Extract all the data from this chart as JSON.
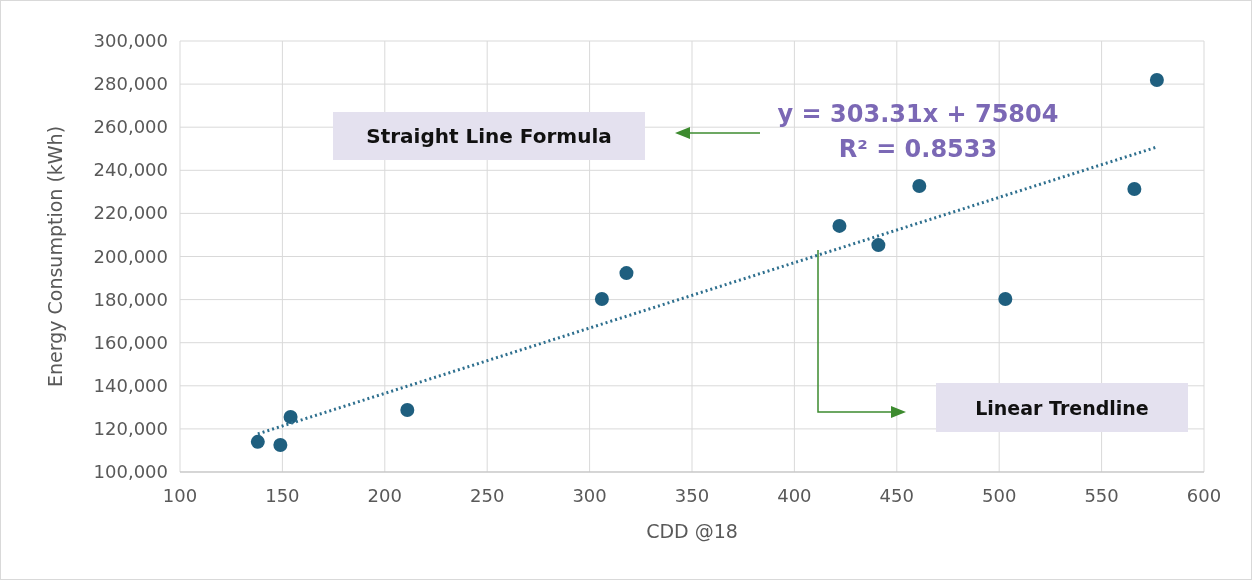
{
  "chart_data": {
    "type": "scatter",
    "xlabel": "CDD @18",
    "ylabel": "Energy Consumption (kWh)",
    "xlim": [
      100,
      600
    ],
    "xticks": [
      100,
      150,
      200,
      250,
      300,
      350,
      400,
      450,
      500,
      550,
      600
    ],
    "ylim": [
      100000,
      300000
    ],
    "yticks": [
      {
        "value": 100000,
        "label": "100,000"
      },
      {
        "value": 120000,
        "label": "120,000"
      },
      {
        "value": 140000,
        "label": "140,000"
      },
      {
        "value": 160000,
        "label": "160,000"
      },
      {
        "value": 180000,
        "label": "180,000"
      },
      {
        "value": 200000,
        "label": "200,000"
      },
      {
        "value": 220000,
        "label": "220,000"
      },
      {
        "value": 240000,
        "label": "240,000"
      },
      {
        "value": 260000,
        "label": "260,000"
      },
      {
        "value": 280000,
        "label": "280,000"
      },
      {
        "value": 300000,
        "label": "300,000"
      }
    ],
    "grid": true,
    "series": [
      {
        "color": "#1f5f7f",
        "marker": "circle",
        "x": [
          138,
          149,
          154,
          211,
          306,
          318,
          422,
          441,
          461,
          503,
          566,
          577
        ],
        "values": [
          114000,
          112500,
          125500,
          128800,
          180300,
          192300,
          214200,
          205300,
          232700,
          180300,
          231300,
          281900
        ]
      },
      {
        "type": "line",
        "color": "#2e6f8e",
        "line_style": "dotted",
        "x": [
          138,
          577
        ],
        "values": [
          117700,
          250800
        ]
      }
    ],
    "annotations": [
      "Straight Line Formula",
      "y = 303.31x + 75804",
      "R² = 0.8533",
      "Linear Trendline"
    ]
  }
}
